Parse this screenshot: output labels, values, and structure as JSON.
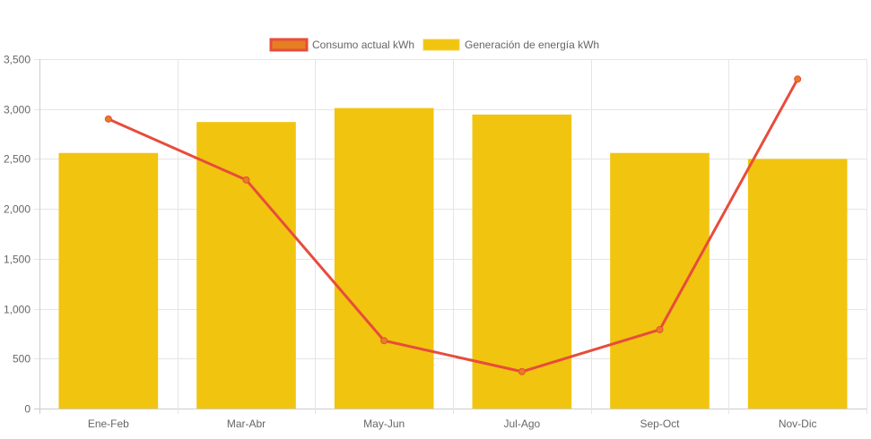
{
  "chart_data": {
    "type": "bar",
    "title": "",
    "xlabel": "",
    "ylabel": "",
    "categories": [
      "Ene-Feb",
      "Mar-Abr",
      "May-Jun",
      "Jul-Ago",
      "Sep-Oct",
      "Nov-Dic"
    ],
    "ylim": [
      0,
      3500
    ],
    "yticks": [
      0,
      500,
      1000,
      1500,
      2000,
      2500,
      3000,
      3500
    ],
    "ytick_labels": [
      "0",
      "500",
      "1,000",
      "1,500",
      "2,000",
      "2,500",
      "3,000",
      "3,500"
    ],
    "grid": true,
    "legend_position": "top",
    "series": [
      {
        "name": "Consumo actual kWh",
        "type": "line",
        "color": "#e74c3c",
        "point_color": "#e67e22",
        "values": [
          2900,
          2290,
          680,
          370,
          790,
          3300
        ]
      },
      {
        "name": "Generación de energía kWh",
        "type": "bar",
        "color": "#f1c40f",
        "values": [
          2560,
          2870,
          3010,
          2945,
          2560,
          2500
        ]
      }
    ]
  }
}
